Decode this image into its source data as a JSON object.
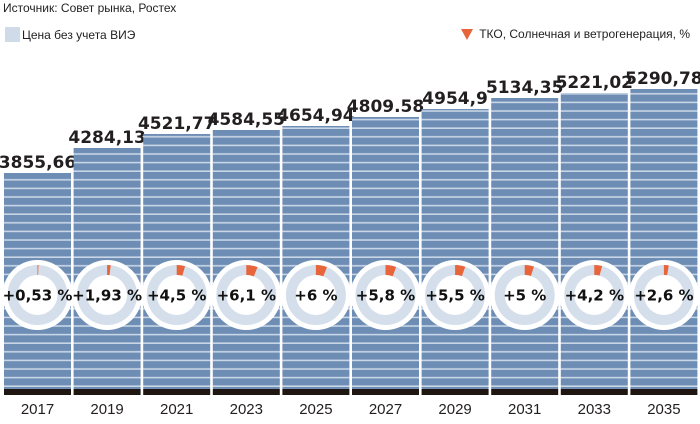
{
  "source": "Источник: Совет рынка, Ростех",
  "legend": {
    "price_label": "Цена без учета ВИЭ",
    "price_color": "#cfdbe8",
    "share_label": "ТКО, Солнечная и ветрогенерация, %",
    "share_color": "#e8643a"
  },
  "colors": {
    "bar": "#6d8db5",
    "stripe": "#c9d6e6",
    "base": "#1f1612",
    "donut_ring": "#d4dfeb",
    "donut_accent": "#e8643a"
  },
  "chart_data": {
    "type": "bar",
    "title": "",
    "xlabel": "",
    "ylabel": "",
    "categories": [
      "2017",
      "2019",
      "2021",
      "2023",
      "2025",
      "2027",
      "2029",
      "2031",
      "2033",
      "2035"
    ],
    "series": [
      {
        "name": "Цена без учета ВИЭ",
        "values": [
          3855.66,
          4284.13,
          4521.77,
          4584.55,
          4654.94,
          4809.58,
          4954.9,
          5134.35,
          5221.02,
          5290.78
        ],
        "labels": [
          "3855,66",
          "4284,13",
          "4521,77",
          "4584,55",
          "4654,94",
          "4809.58",
          "4954,9",
          "5134,35",
          "5221,02",
          "5290,78"
        ]
      },
      {
        "name": "ТКО, Солнечная и ветрогенерация, %",
        "values": [
          0.53,
          1.93,
          4.5,
          6.1,
          6,
          5.8,
          5.5,
          5,
          4.2,
          2.6
        ],
        "labels": [
          "+0,53 %",
          "+1,93 %",
          "+4,5 %",
          "+6,1 %",
          "+6 %",
          "+5,8 %",
          "+5,5 %",
          "+5 %",
          "+4,2 %",
          "+2,6 %"
        ]
      }
    ],
    "legend_position": "top",
    "grid": false
  }
}
